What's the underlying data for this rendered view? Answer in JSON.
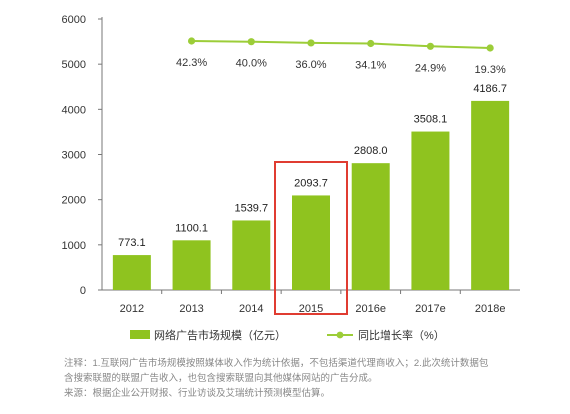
{
  "chart_data": {
    "type": "bar",
    "categories": [
      "2012",
      "2013",
      "2014",
      "2015",
      "2016e",
      "2017e",
      "2018e"
    ],
    "series": [
      {
        "name": "网络广告市场规模（亿元）",
        "type": "bar",
        "axis": "left",
        "values": [
          773.1,
          1100.1,
          1539.7,
          2093.7,
          2808.0,
          3508.1,
          4186.7
        ],
        "labels": [
          "773.1",
          "1100.1",
          "1539.7",
          "2093.7",
          "2808.0",
          "3508.1",
          "4186.7"
        ]
      },
      {
        "name": "同比增长率（%）",
        "type": "line",
        "axis": "secondary (unlabeled)",
        "values": [
          null,
          42.3,
          40.0,
          36.0,
          34.1,
          24.9,
          19.3
        ],
        "labels": [
          "",
          "42.3%",
          "40.0%",
          "36.0%",
          "34.1%",
          "24.9%",
          "19.3%"
        ]
      }
    ],
    "y_ticks": [
      "0",
      "1000",
      "2000",
      "3000",
      "4000",
      "5000",
      "6000"
    ],
    "ylim": [
      0,
      6000
    ],
    "highlight_category": "2015",
    "grid": false,
    "legend_position": "bottom",
    "colors": {
      "bar": "#8fc31f",
      "line": "#9ccd38",
      "highlight_box": "#e03c31"
    }
  },
  "notes": {
    "line1": "注释：1.互联网广告市场规模按照媒体收入作为统计依据，不包括渠道代理商收入；2.此次统计数据包",
    "line2": "含搜索联盟的联盟广告收入，也包含搜索联盟向其他媒体网站的广告分成。",
    "line3": "来源：根据企业公开财报、行业访谈及艾瑞统计预测模型估算。"
  }
}
